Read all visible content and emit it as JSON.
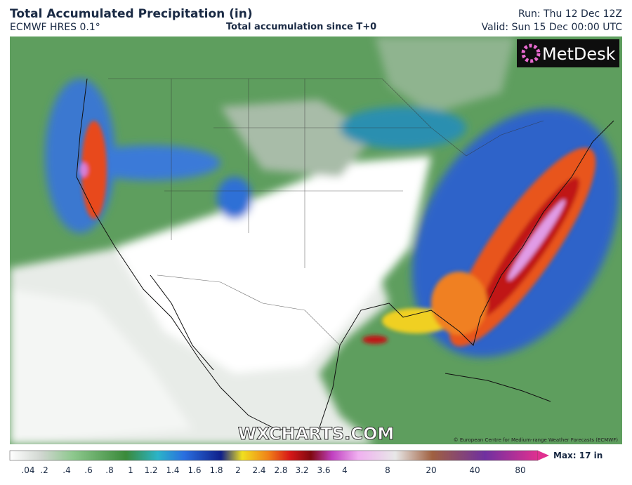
{
  "header": {
    "title": "Total Accumulated Precipitation (in)",
    "model": "ECMWF HRES 0.1°",
    "subtitle": "Total accumulation since T+0",
    "run": "Run: Thu 12 Dec 12Z",
    "valid": "Valid: Sun 15 Dec 00:00 UTC"
  },
  "map": {
    "logo": "MetDesk",
    "watermark": "WXCHARTS.COM",
    "credit": "© European Centre for Medium-range Weather Forecasts (ECMWF)"
  },
  "legend": {
    "labels": [
      ".04",
      ".2",
      ".4",
      ".6",
      ".8",
      "1",
      "1.2",
      "1.4",
      "1.6",
      "1.8",
      "2",
      "2.4",
      "2.8",
      "3.2",
      "3.6",
      "4",
      "8",
      "20",
      "40",
      "80"
    ],
    "max": "Max: 17 in"
  }
}
